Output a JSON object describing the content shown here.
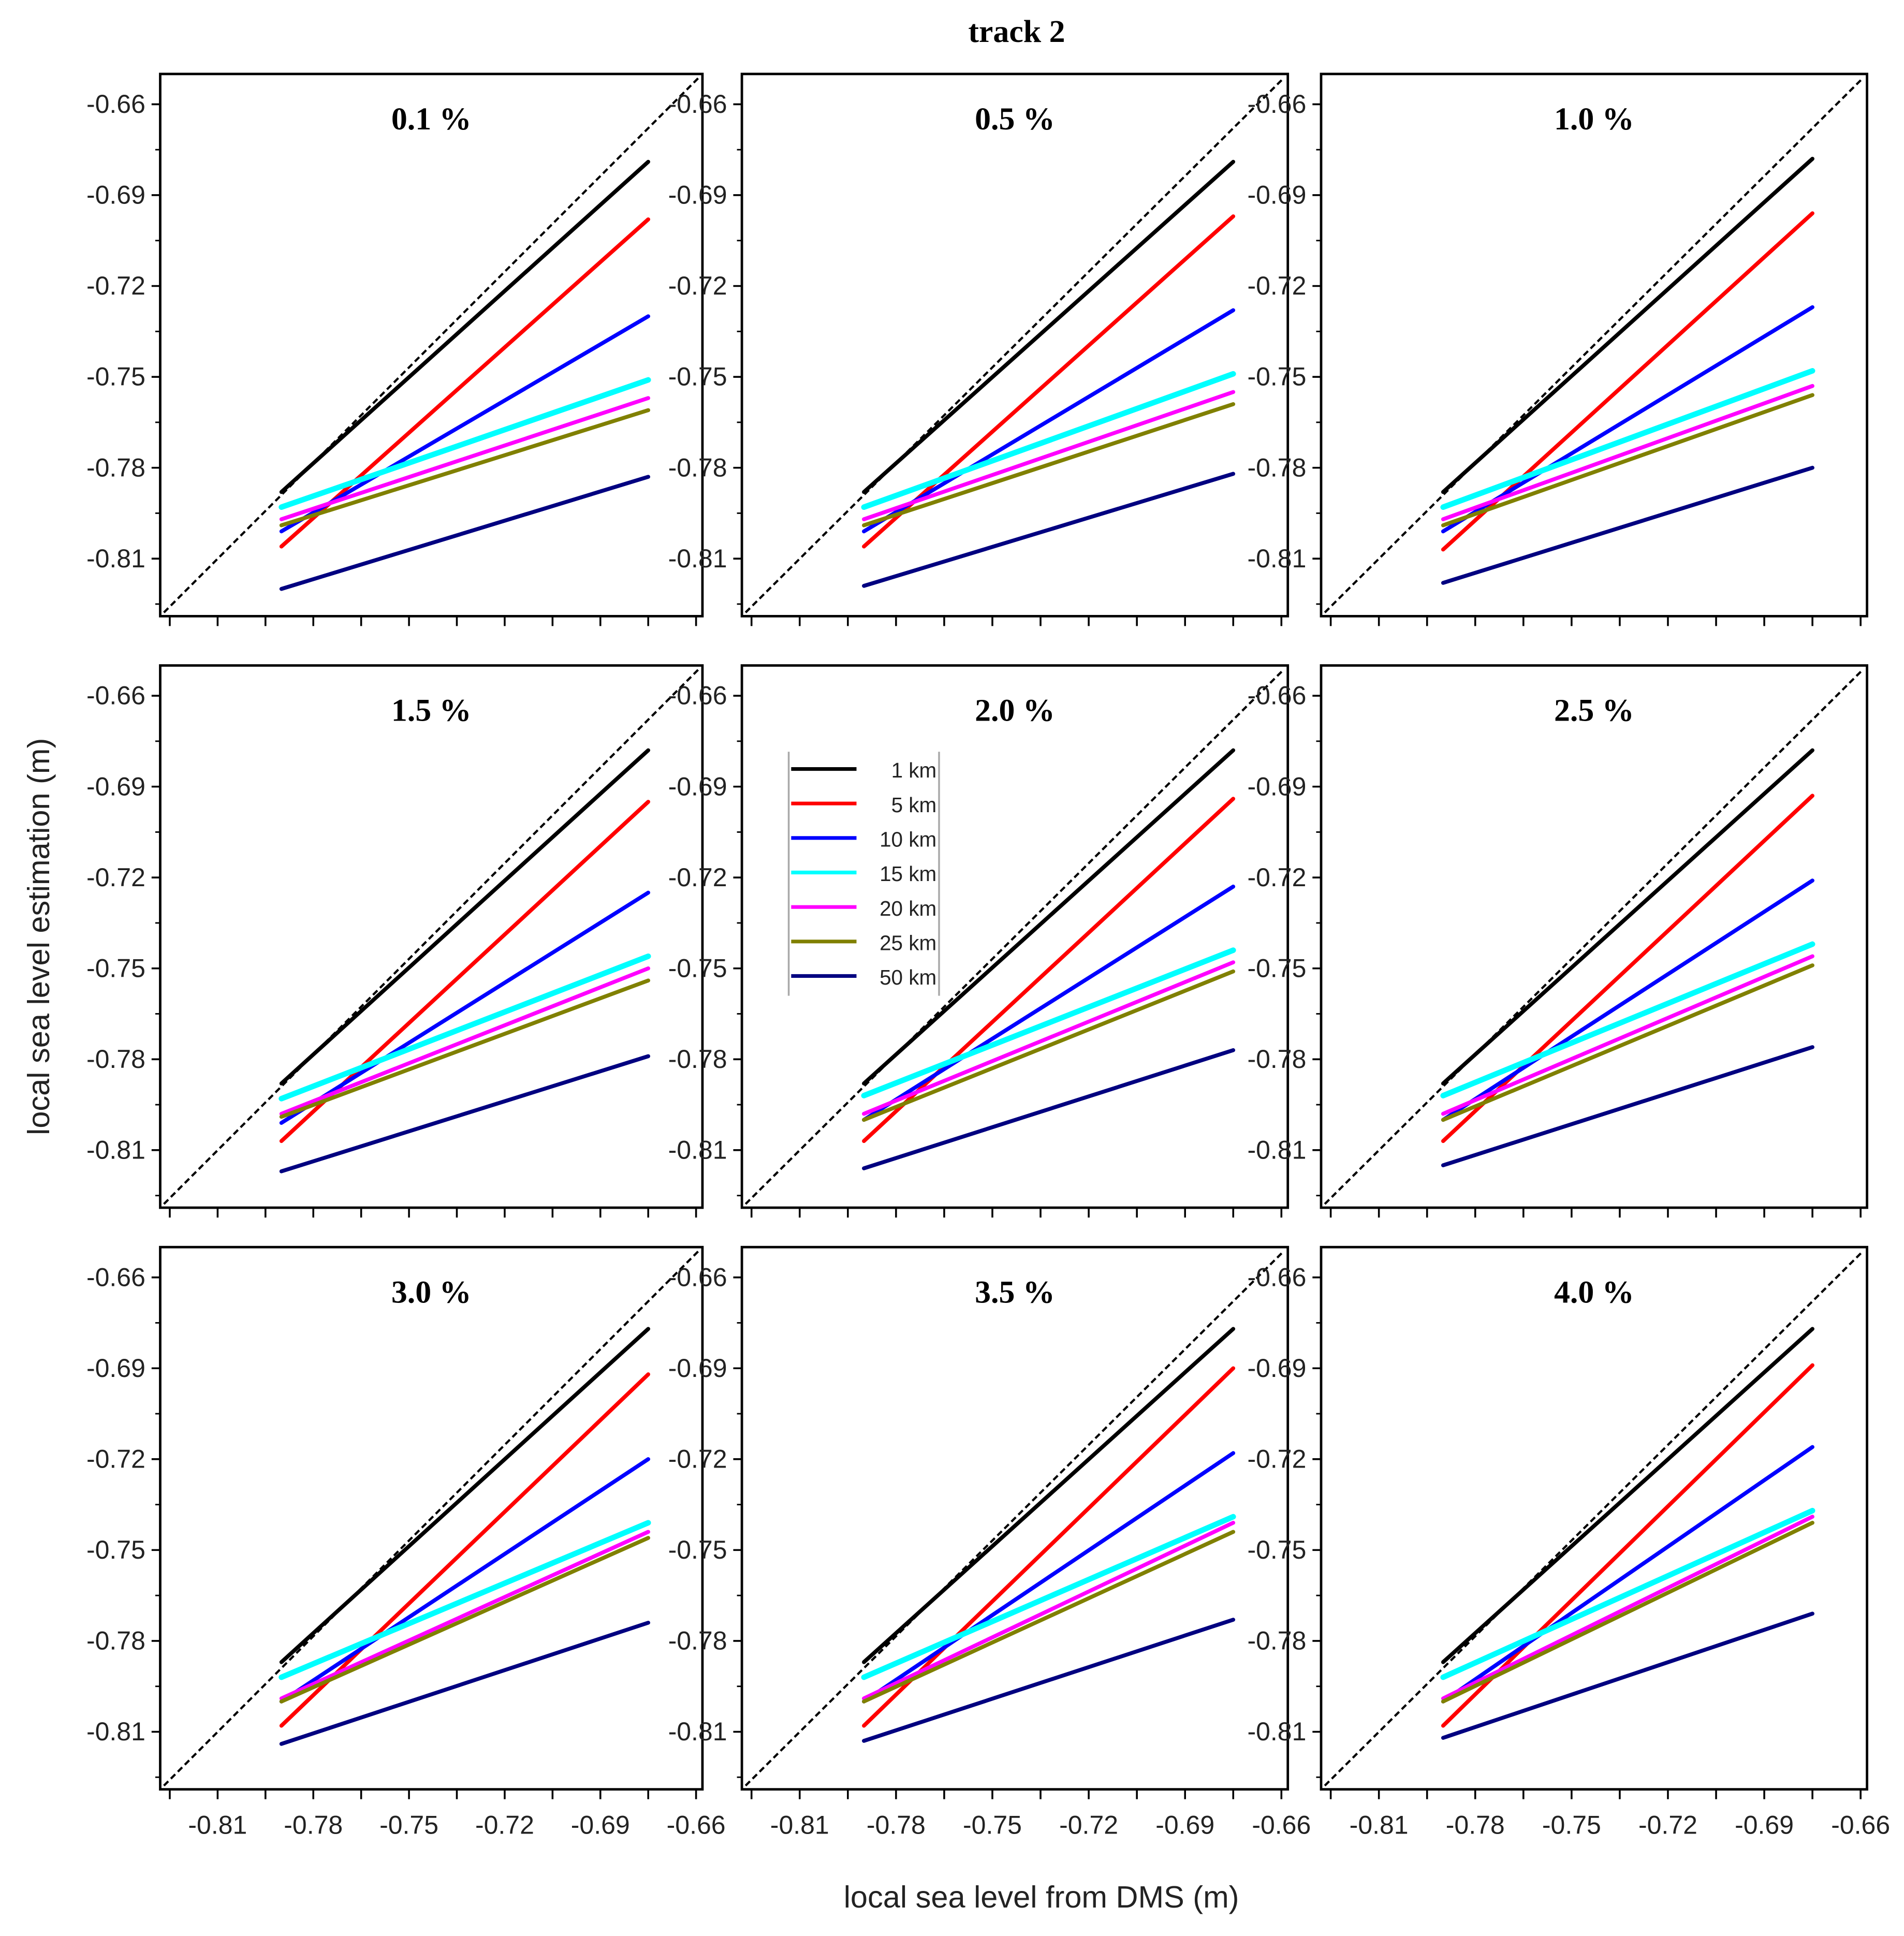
{
  "chart_data": {
    "type": "line",
    "title": "track 2",
    "xlabel": "local sea level from DMS (m)",
    "ylabel": "local sea level estimation (m)",
    "xlim": [
      -0.828,
      -0.658
    ],
    "ylim": [
      -0.829,
      -0.65
    ],
    "xticks": [
      -0.81,
      -0.78,
      -0.75,
      -0.72,
      -0.69,
      -0.66
    ],
    "yticks": [
      -0.66,
      -0.69,
      -0.72,
      -0.75,
      -0.78,
      -0.81
    ],
    "xtick_labels": [
      "-0.81",
      "-0.78",
      "-0.75",
      "-0.72",
      "-0.69",
      "-0.66"
    ],
    "ytick_labels": [
      "-0.66",
      "-0.69",
      "-0.72",
      "-0.75",
      "-0.78",
      "-0.81"
    ],
    "grid": false,
    "reference_line": "1:1 dashed",
    "legend": {
      "placement": "panel 2.0 %, top-left",
      "entries": [
        "1 km",
        "5 km",
        "10 km",
        "15 km",
        "20 km",
        "25 km",
        "50 km"
      ]
    },
    "series_colors": [
      "#000000",
      "#ff0000",
      "#0000ff",
      "#00ffff",
      "#ff00ff",
      "#808000",
      "#000080"
    ],
    "x_range_of_series": [
      -0.79,
      -0.675
    ],
    "panels": [
      {
        "title": "0.1 %",
        "start": [
          -0.788,
          -0.806,
          -0.801,
          -0.793,
          -0.797,
          -0.799,
          -0.82
        ],
        "end": [
          -0.679,
          -0.698,
          -0.73,
          -0.751,
          -0.757,
          -0.761,
          -0.783
        ]
      },
      {
        "title": "0.5 %",
        "start": [
          -0.788,
          -0.806,
          -0.801,
          -0.793,
          -0.797,
          -0.799,
          -0.819
        ],
        "end": [
          -0.679,
          -0.697,
          -0.728,
          -0.749,
          -0.755,
          -0.759,
          -0.782
        ]
      },
      {
        "title": "1.0 %",
        "start": [
          -0.788,
          -0.807,
          -0.801,
          -0.793,
          -0.797,
          -0.799,
          -0.818
        ],
        "end": [
          -0.678,
          -0.696,
          -0.727,
          -0.748,
          -0.753,
          -0.756,
          -0.78
        ]
      },
      {
        "title": "1.5 %",
        "start": [
          -0.788,
          -0.807,
          -0.801,
          -0.793,
          -0.798,
          -0.799,
          -0.817
        ],
        "end": [
          -0.678,
          -0.695,
          -0.725,
          -0.746,
          -0.75,
          -0.754,
          -0.779
        ]
      },
      {
        "title": "2.0 %",
        "start": [
          -0.788,
          -0.807,
          -0.8,
          -0.792,
          -0.798,
          -0.8,
          -0.816
        ],
        "end": [
          -0.678,
          -0.694,
          -0.723,
          -0.744,
          -0.748,
          -0.751,
          -0.777
        ]
      },
      {
        "title": "2.5 %",
        "start": [
          -0.788,
          -0.807,
          -0.8,
          -0.792,
          -0.798,
          -0.8,
          -0.815
        ],
        "end": [
          -0.678,
          -0.693,
          -0.721,
          -0.742,
          -0.746,
          -0.749,
          -0.776
        ]
      },
      {
        "title": "3.0 %",
        "start": [
          -0.787,
          -0.808,
          -0.8,
          -0.792,
          -0.799,
          -0.8,
          -0.814
        ],
        "end": [
          -0.677,
          -0.692,
          -0.72,
          -0.741,
          -0.744,
          -0.746,
          -0.774
        ]
      },
      {
        "title": "3.5 %",
        "start": [
          -0.787,
          -0.808,
          -0.8,
          -0.792,
          -0.799,
          -0.8,
          -0.813
        ],
        "end": [
          -0.677,
          -0.69,
          -0.718,
          -0.739,
          -0.741,
          -0.744,
          -0.773
        ]
      },
      {
        "title": "4.0 %",
        "start": [
          -0.787,
          -0.808,
          -0.8,
          -0.792,
          -0.799,
          -0.8,
          -0.812
        ],
        "end": [
          -0.677,
          -0.689,
          -0.716,
          -0.737,
          -0.739,
          -0.741,
          -0.771
        ]
      }
    ]
  }
}
